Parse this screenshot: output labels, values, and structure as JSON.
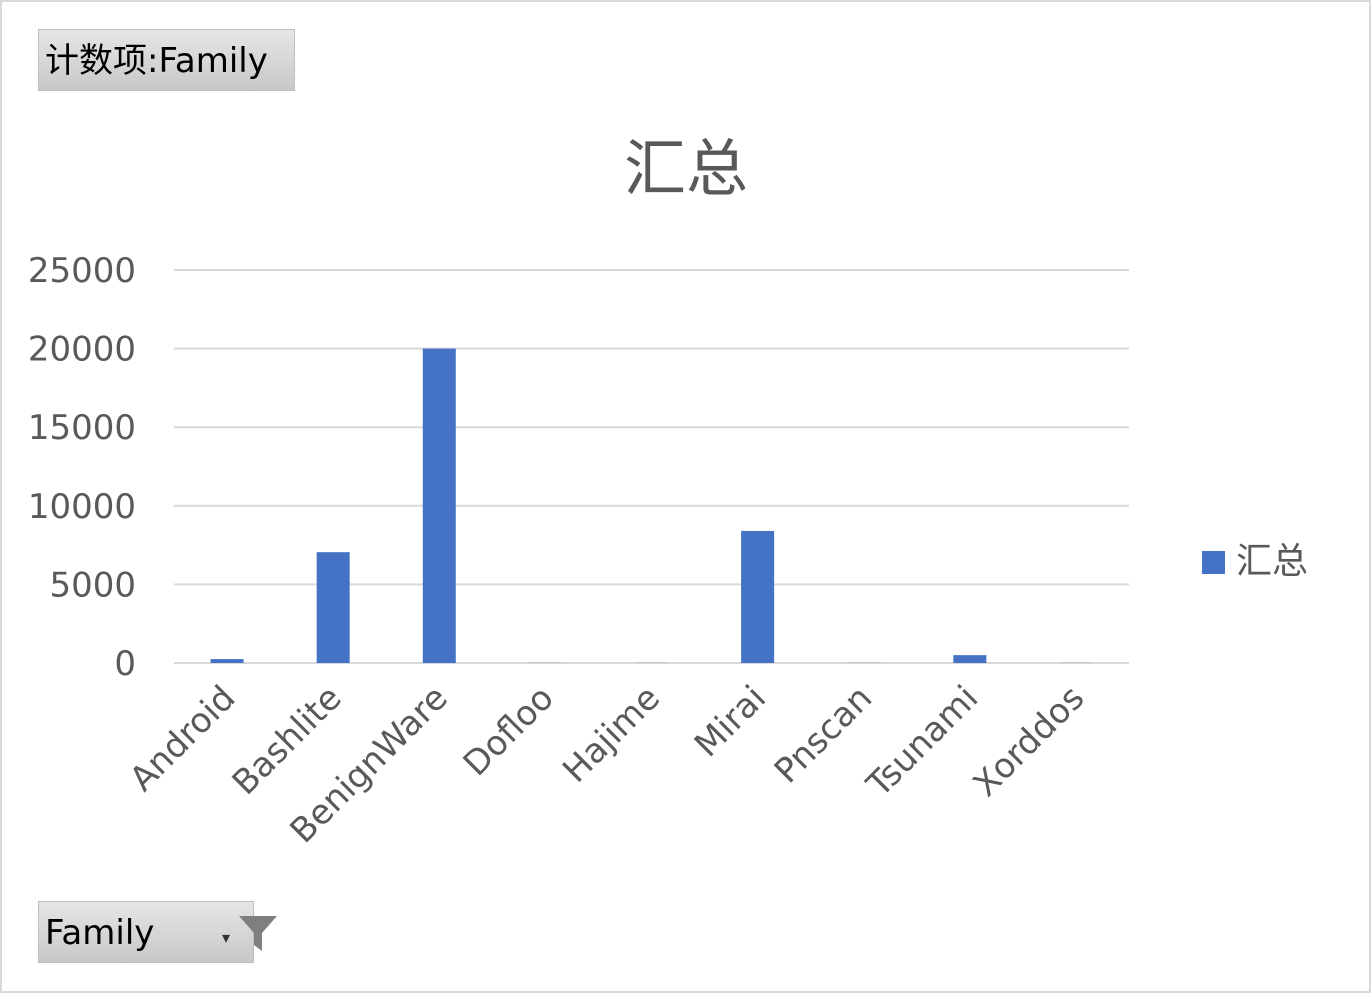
{
  "pivot": {
    "value_field_label": "计数项:Family",
    "axis_field_label": "Family",
    "axis_field_dropdown_glyph": "▾",
    "filter_icon": "funnel-icon"
  },
  "colors": {
    "bar": "#4472c4",
    "grid": "#d9d9d9",
    "text": "#595959"
  },
  "chart_data": {
    "type": "bar",
    "title": "汇总",
    "categories": [
      "Android",
      "Bashlite",
      "BenignWare",
      "Dofloo",
      "Hajime",
      "Mirai",
      "Pnscan",
      "Tsunami",
      "Xorddos"
    ],
    "series": [
      {
        "name": "汇总",
        "values": [
          250,
          7050,
          20000,
          10,
          10,
          8400,
          10,
          500,
          10
        ]
      }
    ],
    "ylim": [
      0,
      25000
    ],
    "yticks": [
      0,
      5000,
      10000,
      15000,
      20000,
      25000
    ],
    "grid": true,
    "legend": "right",
    "xlabel": "",
    "ylabel": ""
  }
}
